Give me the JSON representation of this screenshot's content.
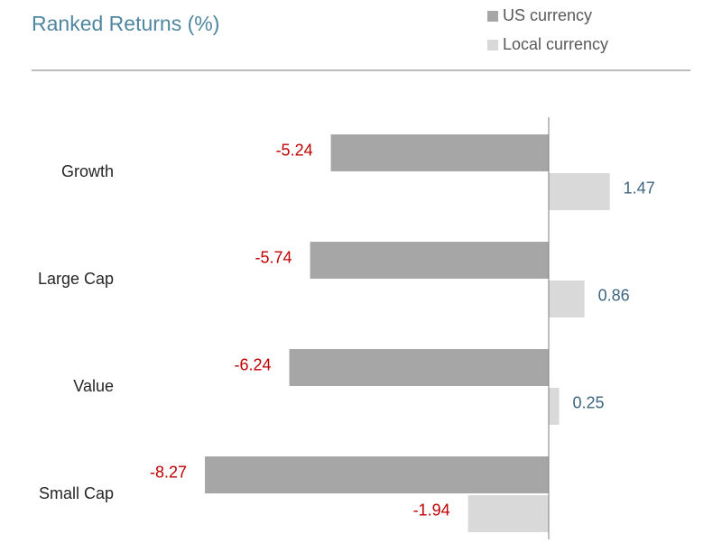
{
  "chart_data": {
    "type": "bar",
    "orientation": "horizontal",
    "title": "Ranked Returns (%)",
    "categories": [
      "Growth",
      "Large Cap",
      "Value",
      "Small Cap"
    ],
    "series": [
      {
        "name": "US currency",
        "color": "#a6a6a6",
        "values": [
          -5.24,
          -5.74,
          -6.24,
          -8.27
        ]
      },
      {
        "name": "Local currency",
        "color": "#d9d9d9",
        "values": [
          1.47,
          0.86,
          0.25,
          -1.94
        ]
      }
    ],
    "xlim": [
      -9,
      2
    ],
    "negative_label_color": "#c00000",
    "positive_label_color": "#3d6580",
    "legend": "top-right"
  }
}
